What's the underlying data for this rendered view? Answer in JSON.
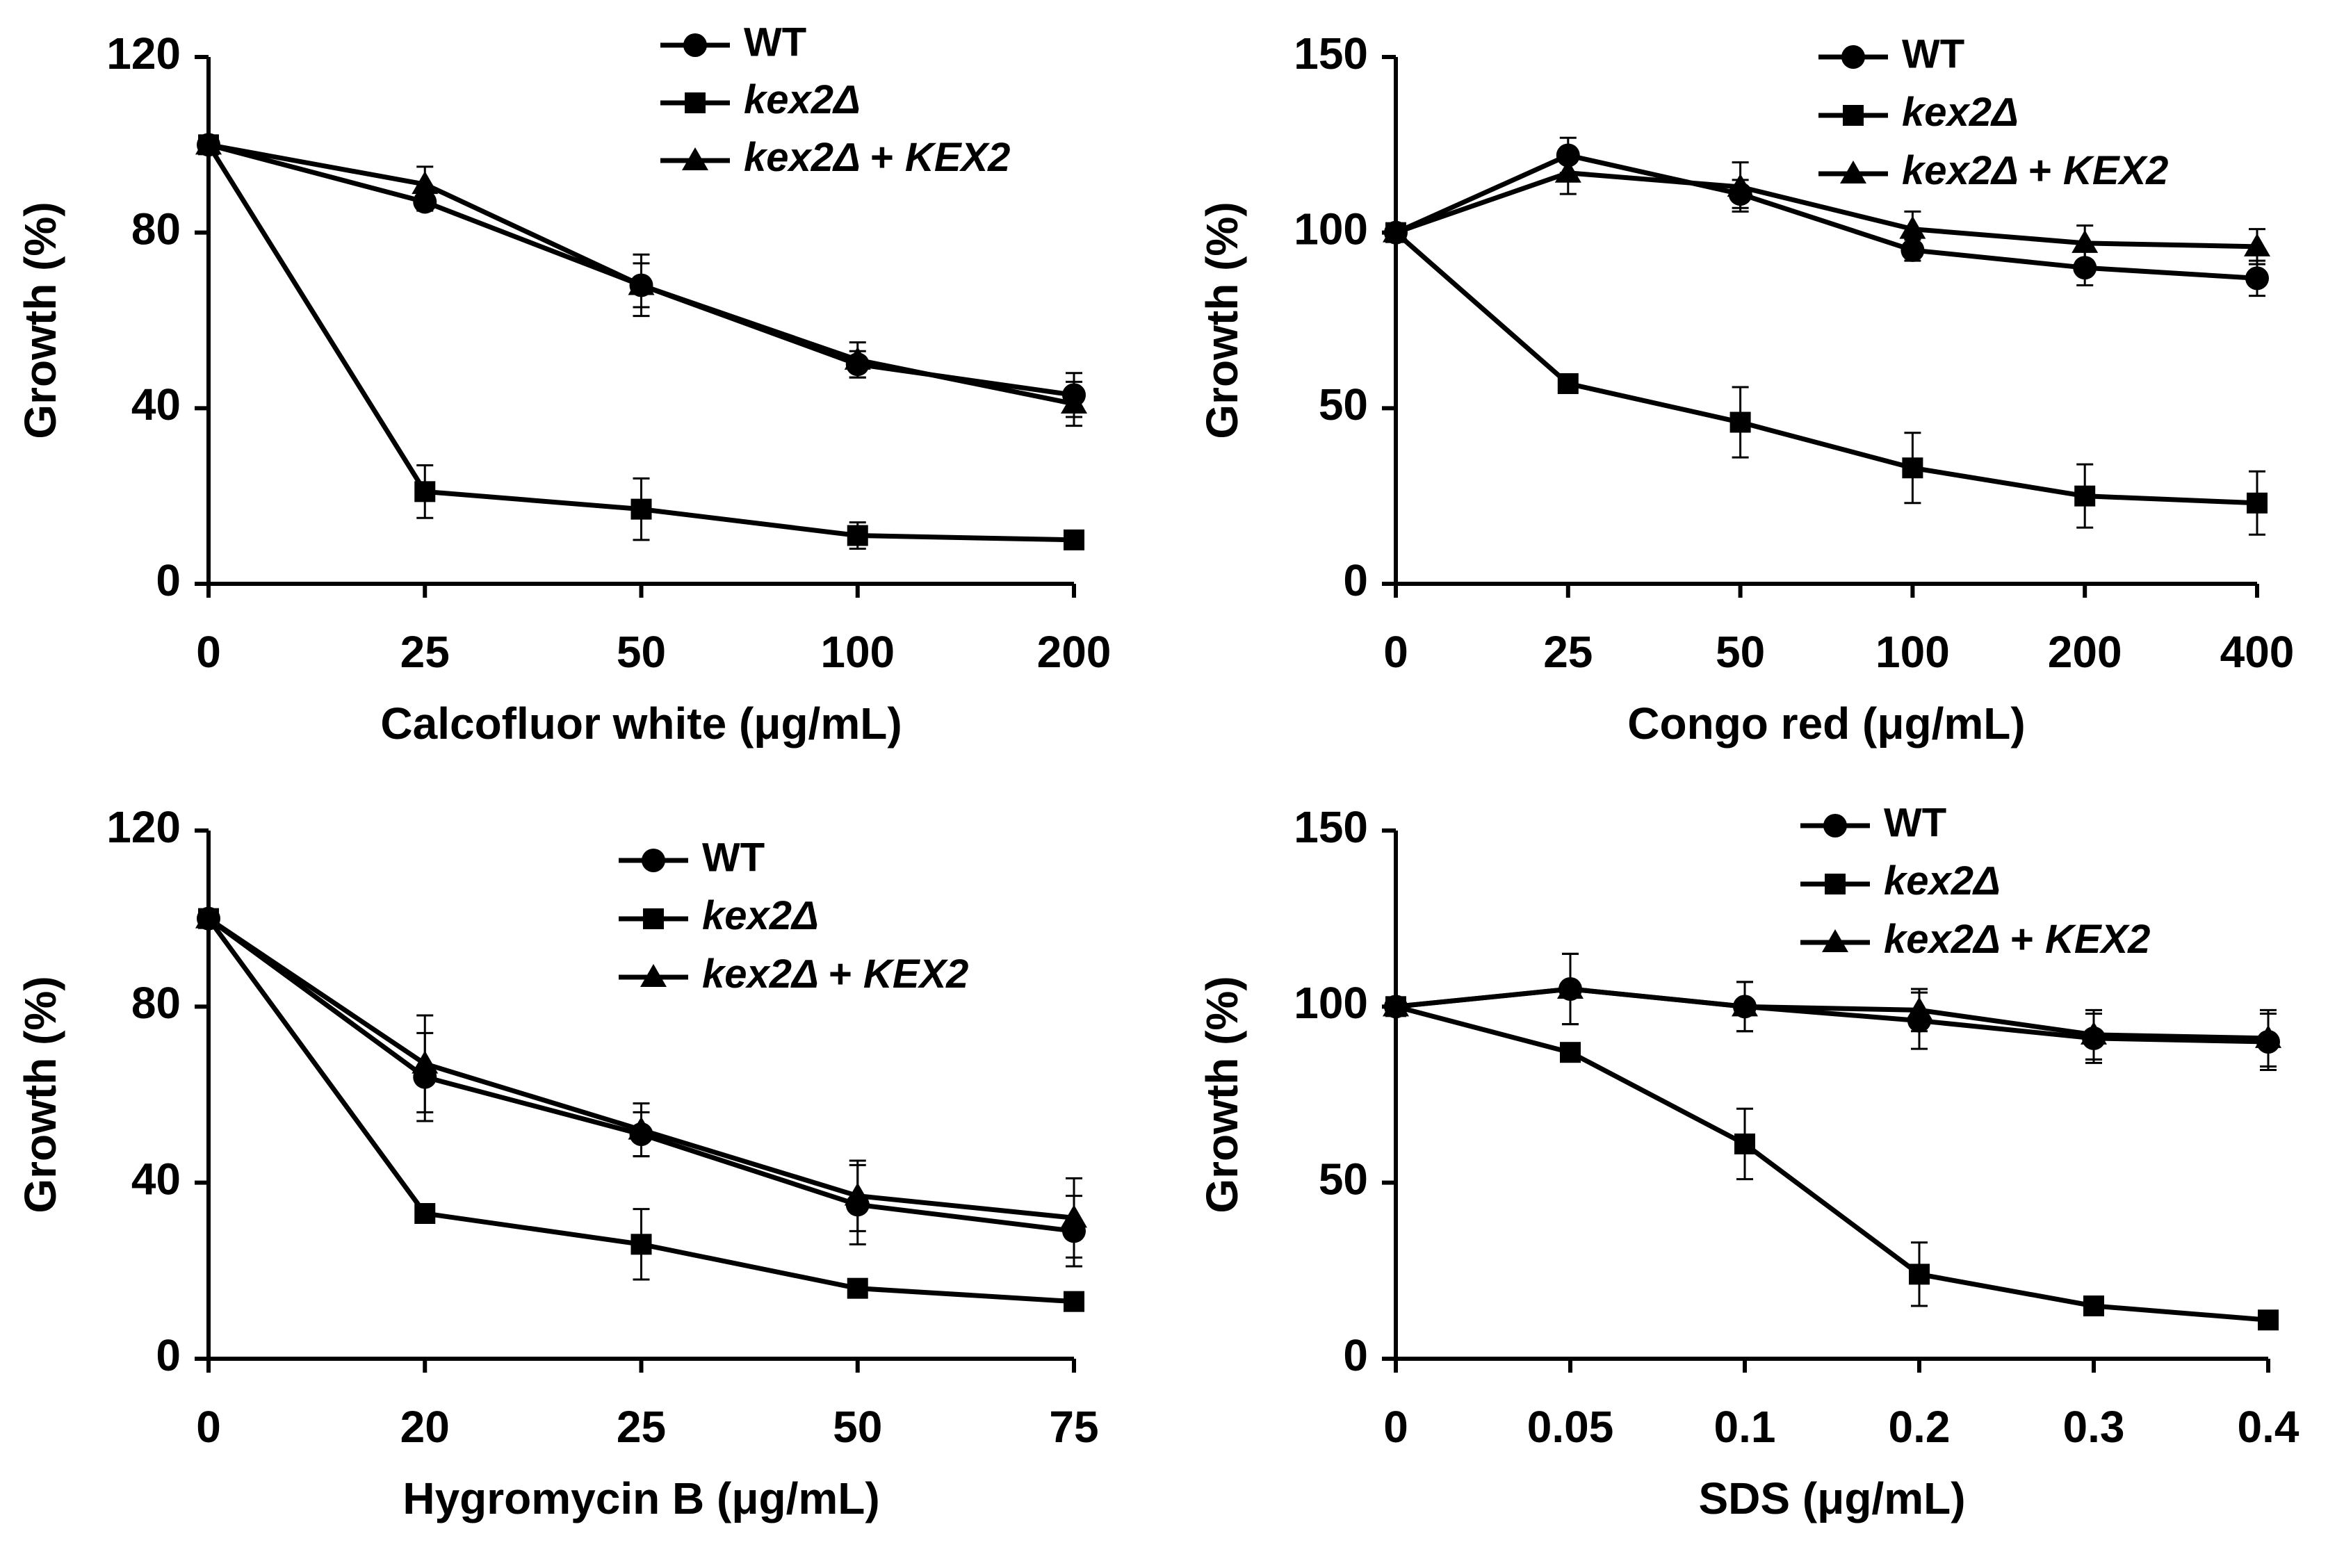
{
  "chart_data": [
    {
      "type": "line",
      "xlabel": "Calcofluor white (μg/mL)",
      "ylabel": "Growth (%)",
      "categories": [
        "0",
        "25",
        "50",
        "100",
        "200"
      ],
      "ylim": [
        0,
        120
      ],
      "yticks": [
        0,
        40,
        80,
        120
      ],
      "legend": [
        "WT",
        "kex2Δ",
        "kex2Δ + KEX2"
      ],
      "legend_position": "top-right",
      "series": [
        {
          "name": "WT",
          "marker": "circle",
          "values": [
            100,
            87,
            68,
            50,
            43
          ],
          "errors": [
            0,
            2,
            5,
            3,
            5
          ]
        },
        {
          "name": "kex2Δ",
          "marker": "square",
          "values": [
            100,
            21,
            17,
            11,
            10
          ],
          "errors": [
            0,
            6,
            7,
            3,
            2
          ]
        },
        {
          "name": "kex2Δ + KEX2",
          "marker": "triangle",
          "values": [
            100,
            91,
            68,
            51,
            41
          ],
          "errors": [
            0,
            4,
            7,
            4,
            5
          ]
        }
      ]
    },
    {
      "type": "line",
      "xlabel": "Congo red (μg/mL)",
      "ylabel": "Growth (%)",
      "categories": [
        "0",
        "25",
        "50",
        "100",
        "200",
        "400"
      ],
      "ylim": [
        0,
        150
      ],
      "yticks": [
        0,
        50,
        100,
        150
      ],
      "legend": [
        "WT",
        "kex2Δ",
        "kex2Δ + KEX2"
      ],
      "legend_position": "top-right",
      "series": [
        {
          "name": "WT",
          "marker": "circle",
          "values": [
            100,
            122,
            111,
            95,
            90,
            87
          ],
          "errors": [
            0,
            5,
            4,
            3,
            5,
            5
          ]
        },
        {
          "name": "kex2Δ",
          "marker": "square",
          "values": [
            100,
            57,
            46,
            33,
            25,
            23
          ],
          "errors": [
            0,
            2,
            10,
            10,
            9,
            9
          ]
        },
        {
          "name": "kex2Δ + KEX2",
          "marker": "triangle",
          "values": [
            100,
            117,
            113,
            101,
            97,
            96
          ],
          "errors": [
            0,
            6,
            7,
            5,
            5,
            5
          ]
        }
      ]
    },
    {
      "type": "line",
      "xlabel": "Hygromycin B (μg/mL)",
      "ylabel": "Growth (%)",
      "categories": [
        "0",
        "20",
        "25",
        "50",
        "75"
      ],
      "ylim": [
        0,
        120
      ],
      "yticks": [
        0,
        40,
        80,
        120
      ],
      "legend": [
        "WT",
        "kex2Δ",
        "kex2Δ + KEX2"
      ],
      "legend_position": "top-right",
      "series": [
        {
          "name": "WT",
          "marker": "circle",
          "values": [
            100,
            64,
            51,
            35,
            29
          ],
          "errors": [
            0,
            10,
            5,
            9,
            8
          ]
        },
        {
          "name": "kex2Δ",
          "marker": "square",
          "values": [
            100,
            33,
            26,
            16,
            13
          ],
          "errors": [
            0,
            2,
            8,
            2,
            2
          ]
        },
        {
          "name": "kex2Δ + KEX2",
          "marker": "triangle",
          "values": [
            100,
            67,
            52,
            37,
            32
          ],
          "errors": [
            0,
            11,
            6,
            8,
            9
          ]
        }
      ]
    },
    {
      "type": "line",
      "xlabel": "SDS (μg/mL)",
      "ylabel": "Growth (%)",
      "categories": [
        "0",
        "0.05",
        "0.1",
        "0.2",
        "0.3",
        "0.4"
      ],
      "ylim": [
        0,
        150
      ],
      "yticks": [
        0,
        50,
        100,
        150
      ],
      "legend": [
        "WT",
        "kex2Δ",
        "kex2Δ + KEX2"
      ],
      "legend_position": "top-right",
      "series": [
        {
          "name": "WT",
          "marker": "circle",
          "values": [
            100,
            105,
            100,
            96,
            91,
            90
          ],
          "errors": [
            0,
            10,
            7,
            8,
            7,
            8
          ]
        },
        {
          "name": "kex2Δ",
          "marker": "square",
          "values": [
            100,
            87,
            61,
            24,
            15,
            11
          ],
          "errors": [
            0,
            2,
            10,
            9,
            2,
            2
          ]
        },
        {
          "name": "kex2Δ + KEX2",
          "marker": "triangle",
          "values": [
            100,
            105,
            100,
            99,
            92,
            91
          ],
          "errors": [
            0,
            10,
            7,
            6,
            7,
            8
          ]
        }
      ]
    }
  ]
}
